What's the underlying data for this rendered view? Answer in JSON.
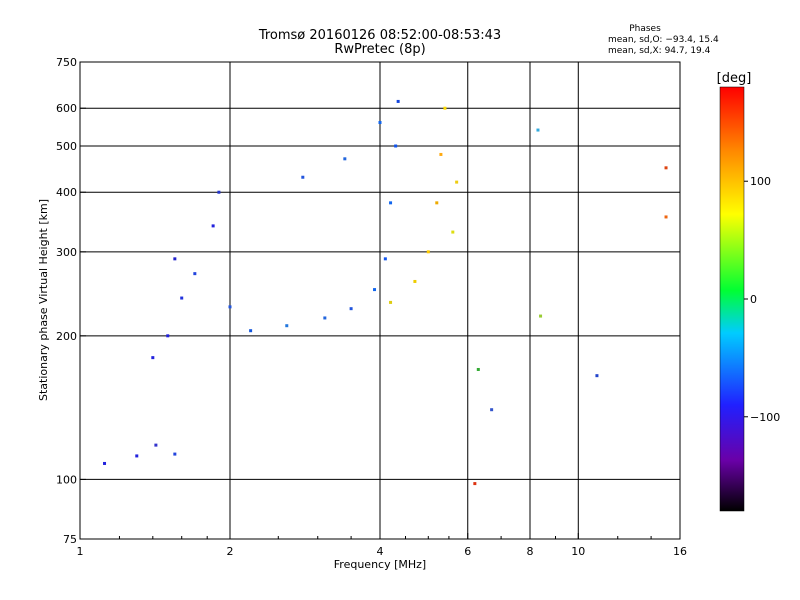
{
  "chart_data": {
    "type": "scatter",
    "title": "Tromsø 20160126 08:52:00-08:53:43",
    "subtitle": "RwPretec (8p)",
    "xlabel": "Frequency [MHz]",
    "ylabel": "Stationary phase Virtual Height [km]",
    "x_scale": "log",
    "y_scale": "log",
    "xlim": [
      1,
      16
    ],
    "ylim": [
      75,
      750
    ],
    "x_ticks": [
      1,
      2,
      4,
      6,
      8,
      10,
      16
    ],
    "x_tick_labels": [
      "1",
      "2",
      "4",
      "6",
      "8",
      "10",
      "16"
    ],
    "x_grid": [
      2,
      4,
      6,
      8,
      10
    ],
    "y_ticks": [
      75,
      100,
      200,
      300,
      400,
      500,
      600,
      750
    ],
    "y_tick_labels": [
      "75",
      "100",
      "200",
      "300",
      "400",
      "500",
      "600",
      "750"
    ],
    "y_grid": [
      100,
      200,
      300,
      400,
      500,
      600
    ],
    "grid": true,
    "legend": {
      "title": "Phases",
      "line1": "mean, sd,O: −93.4, 15.4",
      "line2": "mean, sd,X:  94.7, 19.4",
      "placement": "top-right"
    },
    "colorbar": {
      "label": "[deg]",
      "range": [
        -180,
        180
      ],
      "ticks": [
        100,
        0,
        -100
      ],
      "tick_labels": [
        "100",
        "0",
        "−100"
      ]
    },
    "point_groups": [
      {
        "f": 1.12,
        "h": 108,
        "color": "#2222dd"
      },
      {
        "f": 1.3,
        "h": 112,
        "color": "#2222dd"
      },
      {
        "f": 1.42,
        "h": 118,
        "color": "#3333cc"
      },
      {
        "f": 1.55,
        "h": 113,
        "color": "#2244dd"
      },
      {
        "f": 1.4,
        "h": 180,
        "color": "#2222dd"
      },
      {
        "f": 1.5,
        "h": 200,
        "color": "#2222dd"
      },
      {
        "f": 1.6,
        "h": 240,
        "color": "#2233dd"
      },
      {
        "f": 1.55,
        "h": 290,
        "color": "#2222cc"
      },
      {
        "f": 1.7,
        "h": 270,
        "color": "#2244dd"
      },
      {
        "f": 1.85,
        "h": 340,
        "color": "#2222dd"
      },
      {
        "f": 1.9,
        "h": 400,
        "color": "#2233cc"
      },
      {
        "f": 2.0,
        "h": 230,
        "color": "#2255dd"
      },
      {
        "f": 2.2,
        "h": 205,
        "color": "#1155dd"
      },
      {
        "f": 2.6,
        "h": 210,
        "color": "#2277dd"
      },
      {
        "f": 3.1,
        "h": 218,
        "color": "#2266dd"
      },
      {
        "f": 3.5,
        "h": 228,
        "color": "#2255dd"
      },
      {
        "f": 3.9,
        "h": 250,
        "color": "#1166ee"
      },
      {
        "f": 4.1,
        "h": 290,
        "color": "#1155ee"
      },
      {
        "f": 4.2,
        "h": 380,
        "color": "#1166ee"
      },
      {
        "f": 4.3,
        "h": 500,
        "color": "#1155ee"
      },
      {
        "f": 4.35,
        "h": 620,
        "color": "#1144dd"
      },
      {
        "f": 2.8,
        "h": 430,
        "color": "#2255dd"
      },
      {
        "f": 3.4,
        "h": 470,
        "color": "#2266dd"
      },
      {
        "f": 4.0,
        "h": 560,
        "color": "#1166ee"
      },
      {
        "f": 4.2,
        "h": 235,
        "color": "#ddcc11"
      },
      {
        "f": 4.7,
        "h": 260,
        "color": "#eecc00"
      },
      {
        "f": 5.0,
        "h": 300,
        "color": "#ffcc00"
      },
      {
        "f": 5.2,
        "h": 380,
        "color": "#eeaa00"
      },
      {
        "f": 5.3,
        "h": 480,
        "color": "#ffaa11"
      },
      {
        "f": 5.4,
        "h": 600,
        "color": "#ffdd00"
      },
      {
        "f": 5.6,
        "h": 330,
        "color": "#dddd11"
      },
      {
        "f": 5.7,
        "h": 420,
        "color": "#eecc11"
      },
      {
        "f": 6.2,
        "h": 98,
        "color": "#dd3311"
      },
      {
        "f": 6.3,
        "h": 170,
        "color": "#33aa33"
      },
      {
        "f": 6.7,
        "h": 140,
        "color": "#3355cc"
      },
      {
        "f": 8.3,
        "h": 540,
        "color": "#33aadd"
      },
      {
        "f": 8.4,
        "h": 220,
        "color": "#99cc33"
      },
      {
        "f": 10.9,
        "h": 165,
        "color": "#2244cc"
      },
      {
        "f": 15.0,
        "h": 450,
        "color": "#dd4411"
      },
      {
        "f": 15.0,
        "h": 355,
        "color": "#ee6611"
      }
    ]
  }
}
